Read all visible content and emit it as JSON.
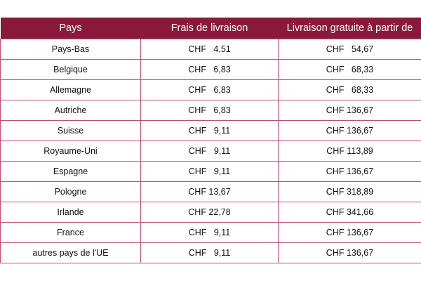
{
  "table": {
    "headers": [
      "Pays",
      "Frais de livraison",
      "Livraison gratuite à partir de"
    ],
    "rows": [
      [
        "Pays-Bas",
        "CHF   4,51",
        "CHF   54,67"
      ],
      [
        "Belgique",
        "CHF   6,83",
        "CHF   68,33"
      ],
      [
        "Allemagne",
        "CHF   6,83",
        "CHF   68,33"
      ],
      [
        "Autriche",
        "CHF   6,83",
        "CHF 136,67"
      ],
      [
        "Suisse",
        "CHF   9,11",
        "CHF 136,67"
      ],
      [
        "Royaume-Uni",
        "CHF   9,11",
        "CHF 113,89"
      ],
      [
        "Espagne",
        "CHF   9,11",
        "CHF 136,67"
      ],
      [
        "Pologne",
        "CHF 13,67",
        "CHF 318,89"
      ],
      [
        "Irlande",
        "CHF 22,78",
        "CHF 341,66"
      ],
      [
        "France",
        "CHF   9,11",
        "CHF 136,67"
      ],
      [
        "autres pays de l'UE",
        "CHF   9,11",
        "CHF 136,67"
      ]
    ]
  },
  "colors": {
    "header_bg": "#8b1a3a",
    "border": "#b8536f"
  }
}
